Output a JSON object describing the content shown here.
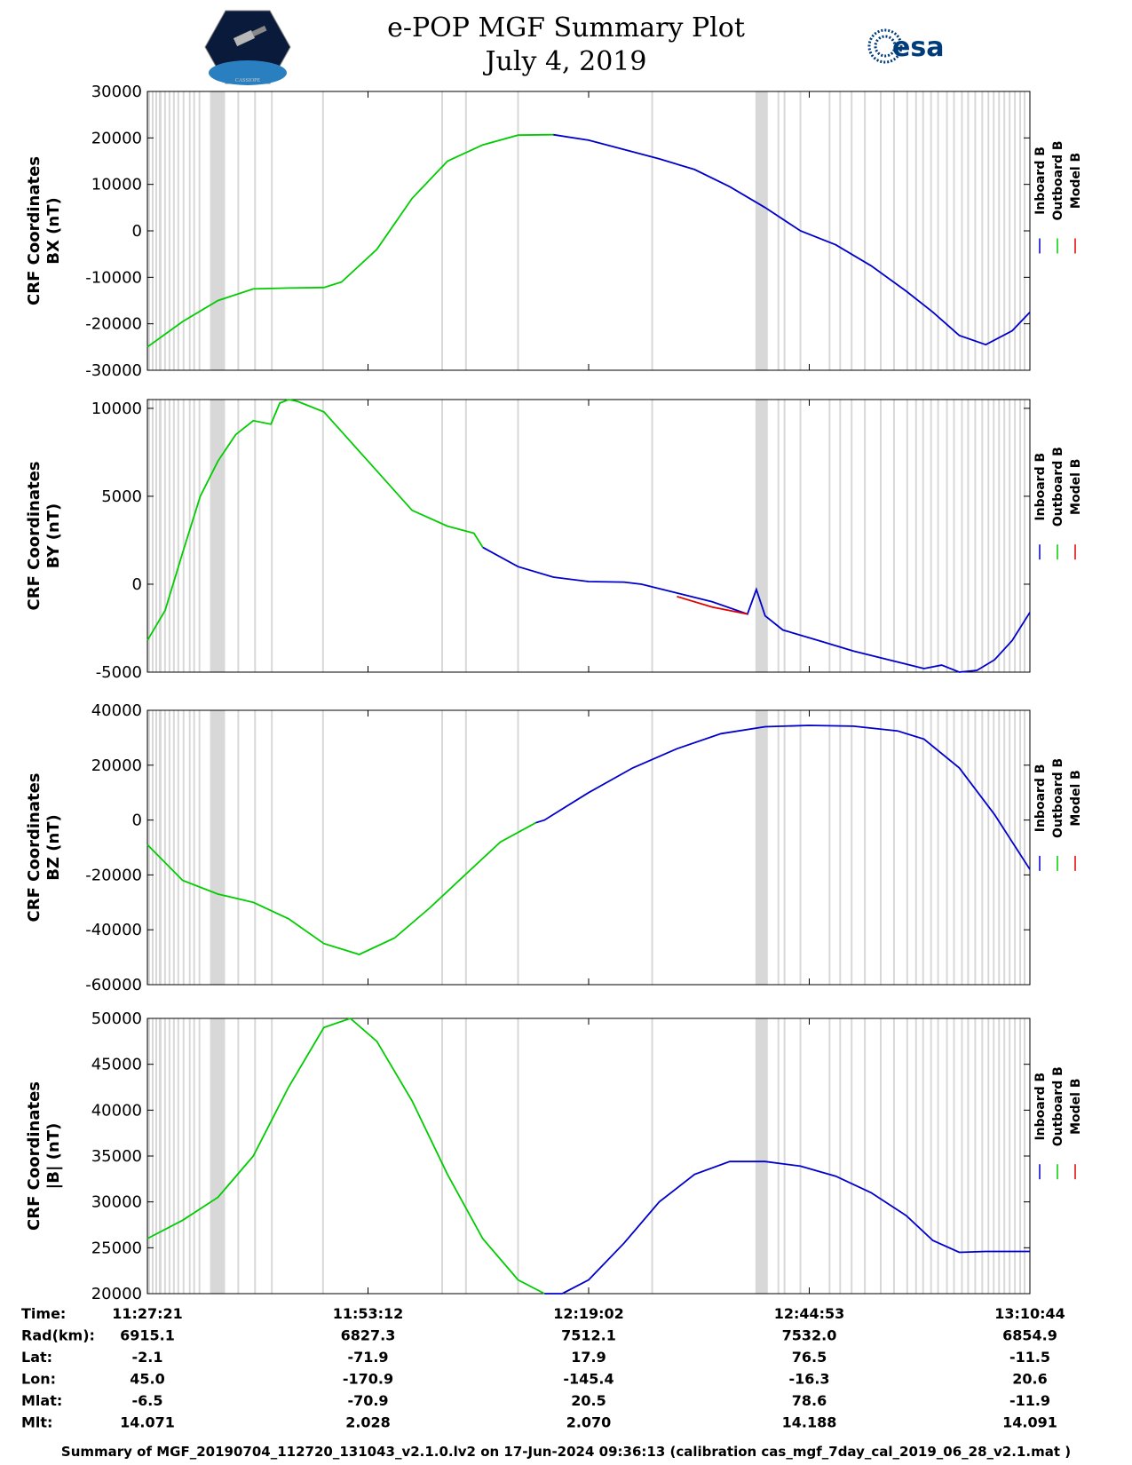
{
  "header": {
    "title": "e-POP MGF Summary Plot",
    "date": "July 4, 2019",
    "logo_left_text": "CASSIOPE",
    "logo_right_text": "esa"
  },
  "colors": {
    "inboard": "#0000cc",
    "outboard": "#00cc00",
    "model": "#e00000",
    "gap_shade": "#d8d8d8"
  },
  "chart_data": [
    {
      "type": "line",
      "id": "bx",
      "ylabel": [
        "CRF Coordinates",
        "BX (nT)"
      ],
      "ylim": [
        -30000,
        30000
      ],
      "yticks": [
        30000,
        20000,
        10000,
        0,
        -10000,
        -20000,
        -30000
      ],
      "legend": [
        "Inboard B",
        "Outboard B",
        "Model B"
      ],
      "x": [
        0,
        0.04,
        0.08,
        0.12,
        0.16,
        0.2,
        0.22,
        0.26,
        0.3,
        0.34,
        0.38,
        0.42,
        0.46,
        0.5,
        0.54,
        0.58,
        0.62,
        0.66,
        0.7,
        0.74,
        0.78,
        0.82,
        0.86,
        0.89,
        0.92,
        0.95,
        0.98,
        1.0
      ],
      "series": [
        {
          "name": "Outboard B",
          "color": "outboard",
          "y": [
            -25000,
            -19500,
            -15000,
            -12500,
            -12300,
            -12200,
            -11000,
            -4000,
            7000,
            15000,
            18500,
            20600,
            20700,
            null,
            null,
            null,
            null,
            null,
            null,
            null,
            null,
            null,
            null,
            null,
            null,
            null,
            null,
            null
          ]
        },
        {
          "name": "Inboard B",
          "color": "inboard",
          "y": [
            null,
            null,
            null,
            null,
            null,
            null,
            null,
            null,
            null,
            null,
            null,
            null,
            20700,
            19500,
            17500,
            15500,
            13200,
            9500,
            5000,
            0,
            -3000,
            -7500,
            -13000,
            -17500,
            -22500,
            -24500,
            -21500,
            -17500
          ]
        },
        {
          "name": "Model B",
          "color": "model",
          "y": [
            null,
            null,
            null,
            null,
            null,
            null,
            null,
            null,
            null,
            null,
            null,
            null,
            null,
            null,
            null,
            null,
            null,
            null,
            null,
            null,
            -3100,
            null,
            null,
            null,
            null,
            null,
            null,
            null
          ]
        }
      ]
    },
    {
      "type": "line",
      "id": "by",
      "ylabel": [
        "CRF Coordinates",
        "BY (nT)"
      ],
      "ylim": [
        -5000,
        10500
      ],
      "yticks": [
        10000,
        5000,
        0,
        -5000
      ],
      "legend": [
        "Inboard B",
        "Outboard B",
        "Model B"
      ],
      "x": [
        0,
        0.02,
        0.04,
        0.06,
        0.08,
        0.1,
        0.12,
        0.14,
        0.15,
        0.16,
        0.17,
        0.2,
        0.25,
        0.3,
        0.34,
        0.37,
        0.38,
        0.42,
        0.46,
        0.5,
        0.54,
        0.56,
        0.6,
        0.64,
        0.68,
        0.69,
        0.7,
        0.72,
        0.76,
        0.8,
        0.84,
        0.88,
        0.9,
        0.92,
        0.94,
        0.96,
        0.98,
        1.0
      ],
      "series": [
        {
          "name": "Outboard B",
          "color": "outboard",
          "y": [
            -3200,
            -1500,
            1800,
            5000,
            7000,
            8500,
            9300,
            9100,
            10300,
            10500,
            10400,
            9800,
            7000,
            4200,
            3300,
            2900,
            2100,
            null,
            null,
            null,
            null,
            null,
            null,
            null,
            null,
            null,
            null,
            null,
            null,
            null,
            null,
            null,
            null,
            null,
            null,
            null,
            null,
            null
          ]
        },
        {
          "name": "Inboard B",
          "color": "inboard",
          "y": [
            null,
            null,
            null,
            null,
            null,
            null,
            null,
            null,
            null,
            null,
            null,
            null,
            null,
            null,
            null,
            null,
            2100,
            1000,
            400,
            150,
            120,
            0,
            -500,
            -1000,
            -1700,
            -300,
            -1800,
            -2600,
            -3200,
            -3800,
            -4300,
            -4800,
            -4600,
            -5000,
            -4900,
            -4300,
            -3200,
            -1600
          ]
        },
        {
          "name": "Model B",
          "color": "model",
          "y": [
            null,
            null,
            null,
            null,
            null,
            null,
            null,
            null,
            null,
            null,
            null,
            null,
            null,
            null,
            null,
            null,
            null,
            null,
            null,
            null,
            null,
            null,
            -700,
            -1300,
            -1700,
            null,
            -1900,
            null,
            null,
            null,
            null,
            null,
            null,
            null,
            null,
            null,
            null,
            null
          ]
        }
      ]
    },
    {
      "type": "line",
      "id": "bz",
      "ylabel": [
        "CRF Coordinates",
        "BZ (nT)"
      ],
      "ylim": [
        -60000,
        40000
      ],
      "yticks": [
        40000,
        20000,
        0,
        -20000,
        -40000,
        -60000
      ],
      "legend": [
        "Inboard B",
        "Outboard B",
        "Model B"
      ],
      "x": [
        0,
        0.04,
        0.08,
        0.12,
        0.16,
        0.2,
        0.24,
        0.28,
        0.32,
        0.36,
        0.4,
        0.44,
        0.45,
        0.5,
        0.55,
        0.6,
        0.65,
        0.7,
        0.75,
        0.8,
        0.85,
        0.88,
        0.92,
        0.96,
        1.0
      ],
      "series": [
        {
          "name": "Outboard B",
          "color": "outboard",
          "y": [
            -9000,
            -22000,
            -27000,
            -30000,
            -36000,
            -45000,
            -49000,
            -43000,
            -32000,
            -20000,
            -8000,
            -1000,
            null,
            null,
            null,
            null,
            null,
            null,
            null,
            null,
            null,
            null,
            null,
            null,
            null
          ]
        },
        {
          "name": "Inboard B",
          "color": "inboard",
          "y": [
            null,
            null,
            null,
            null,
            null,
            null,
            null,
            null,
            null,
            null,
            null,
            -1000,
            0,
            10000,
            19000,
            26000,
            31500,
            34000,
            34500,
            34200,
            32500,
            29500,
            19000,
            2000,
            -18000
          ]
        }
      ]
    },
    {
      "type": "line",
      "id": "bmag",
      "ylabel": [
        "CRF Coordinates",
        "|B| (nT)"
      ],
      "ylim": [
        20000,
        50000
      ],
      "yticks": [
        50000,
        45000,
        40000,
        35000,
        30000,
        25000,
        20000
      ],
      "legend": [
        "Inboard B",
        "Outboard B",
        "Model B"
      ],
      "x": [
        0,
        0.04,
        0.08,
        0.12,
        0.16,
        0.2,
        0.23,
        0.26,
        0.3,
        0.34,
        0.38,
        0.42,
        0.45,
        0.47,
        0.5,
        0.54,
        0.58,
        0.62,
        0.66,
        0.7,
        0.74,
        0.78,
        0.82,
        0.86,
        0.89,
        0.92,
        0.95,
        1.0
      ],
      "series": [
        {
          "name": "Outboard B",
          "color": "outboard",
          "y": [
            26000,
            28000,
            30500,
            35000,
            42500,
            49000,
            50000,
            47500,
            41000,
            33000,
            26000,
            21500,
            20000,
            null,
            null,
            null,
            null,
            null,
            null,
            null,
            null,
            null,
            null,
            null,
            null,
            null,
            null,
            null
          ]
        },
        {
          "name": "Inboard B",
          "color": "inboard",
          "y": [
            null,
            null,
            null,
            null,
            null,
            null,
            null,
            null,
            null,
            null,
            null,
            null,
            20000,
            20000,
            21500,
            25500,
            30000,
            33000,
            34400,
            34400,
            33900,
            32800,
            31000,
            28500,
            25800,
            24500,
            24600,
            24600
          ]
        }
      ]
    }
  ],
  "time_axis": {
    "ticks_x": [
      0,
      0.25,
      0.5,
      0.75,
      1.0
    ],
    "gaps": [
      [
        0,
        0.003
      ],
      [
        0.005,
        0.007
      ],
      [
        0.009,
        0.011
      ],
      [
        0.013,
        0.016
      ],
      [
        0.019,
        0.021
      ],
      [
        0.024,
        0.026
      ],
      [
        0.029,
        0.031
      ],
      [
        0.034,
        0.036
      ],
      [
        0.04,
        0.042
      ],
      [
        0.047,
        0.049
      ],
      [
        0.052,
        0.054
      ],
      [
        0.058,
        0.06
      ],
      [
        0.071,
        0.088
      ],
      [
        0.102,
        0.104
      ],
      [
        0.121,
        0.123
      ],
      [
        0.14,
        0.142
      ],
      [
        0.198,
        0.2
      ],
      [
        0.333,
        0.335
      ],
      [
        0.36,
        0.362
      ],
      [
        0.419,
        0.421
      ],
      [
        0.571,
        0.573
      ],
      [
        0.689,
        0.703
      ],
      [
        0.714,
        0.716
      ],
      [
        0.721,
        0.723
      ],
      [
        0.739,
        0.741
      ],
      [
        0.772,
        0.774
      ],
      [
        0.784,
        0.786
      ],
      [
        0.797,
        0.799
      ],
      [
        0.812,
        0.814
      ],
      [
        0.83,
        0.832
      ],
      [
        0.845,
        0.847
      ],
      [
        0.86,
        0.862
      ],
      [
        0.87,
        0.872
      ],
      [
        0.878,
        0.88
      ],
      [
        0.887,
        0.889
      ],
      [
        0.895,
        0.897
      ],
      [
        0.905,
        0.907
      ],
      [
        0.913,
        0.915
      ],
      [
        0.922,
        0.924
      ],
      [
        0.929,
        0.931
      ],
      [
        0.937,
        0.939
      ],
      [
        0.945,
        0.947
      ],
      [
        0.952,
        0.954
      ],
      [
        0.958,
        0.96
      ],
      [
        0.964,
        0.966
      ],
      [
        0.97,
        0.972
      ],
      [
        0.976,
        0.978
      ],
      [
        0.982,
        0.984
      ],
      [
        0.988,
        0.99
      ],
      [
        0.993,
        0.995
      ]
    ]
  },
  "orbit_table": {
    "rows": [
      {
        "label": "Time:",
        "values": [
          "11:27:21",
          "11:53:12",
          "12:19:02",
          "12:44:53",
          "13:10:44"
        ]
      },
      {
        "label": "Rad(km):",
        "values": [
          "6915.1",
          "6827.3",
          "7512.1",
          "7532.0",
          "6854.9"
        ]
      },
      {
        "label": "Lat:",
        "values": [
          "-2.1",
          "-71.9",
          "17.9",
          "76.5",
          "-11.5"
        ]
      },
      {
        "label": "Lon:",
        "values": [
          "45.0",
          "-170.9",
          "-145.4",
          "-16.3",
          "20.6"
        ]
      },
      {
        "label": "Mlat:",
        "values": [
          "-6.5",
          "-70.9",
          "20.5",
          "78.6",
          "-11.9"
        ]
      },
      {
        "label": "Mlt:",
        "values": [
          "14.071",
          "2.028",
          "2.070",
          "14.188",
          "14.091"
        ]
      }
    ]
  },
  "footer": "Summary of MGF_20190704_112720_131043_v2.1.0.lv2 on 17-Jun-2024 09:36:13 (calibration cas_mgf_7day_cal_2019_06_28_v2.1.mat )"
}
